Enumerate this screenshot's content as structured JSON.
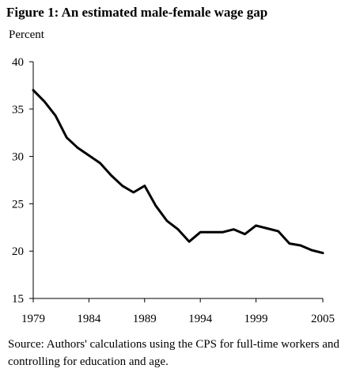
{
  "title": "Figure 1: An estimated male-female wage gap",
  "source": "Source: Authors' calculations using the CPS for full-time workers and controlling for education and age.",
  "chart_data": {
    "type": "line",
    "title": "Figure 1: An estimated male-female wage gap",
    "ylabel": "Percent",
    "xlabel": "",
    "xlim": [
      1979,
      2005
    ],
    "ylim": [
      15,
      40
    ],
    "yticks": [
      15,
      20,
      25,
      30,
      35,
      40
    ],
    "xticks": [
      1979,
      1984,
      1989,
      1994,
      1999,
      2005
    ],
    "grid": false,
    "legend": "none",
    "color": "#000000",
    "series": [
      {
        "x": [
          1979,
          1980,
          1981,
          1982,
          1983,
          1984,
          1985,
          1986,
          1987,
          1988,
          1989,
          1990,
          1991,
          1992,
          1993,
          1994,
          1995,
          1996,
          1997,
          1998,
          1999,
          2000,
          2001,
          2002,
          2003,
          2004,
          2005
        ],
        "values": [
          37.0,
          35.8,
          34.3,
          32.0,
          30.9,
          30.1,
          29.3,
          28.0,
          26.9,
          26.2,
          26.9,
          24.8,
          23.2,
          22.3,
          21.0,
          22.0,
          22.0,
          22.0,
          22.3,
          21.8,
          22.7,
          22.4,
          22.1,
          20.8,
          20.6,
          20.1,
          19.8
        ]
      }
    ]
  }
}
